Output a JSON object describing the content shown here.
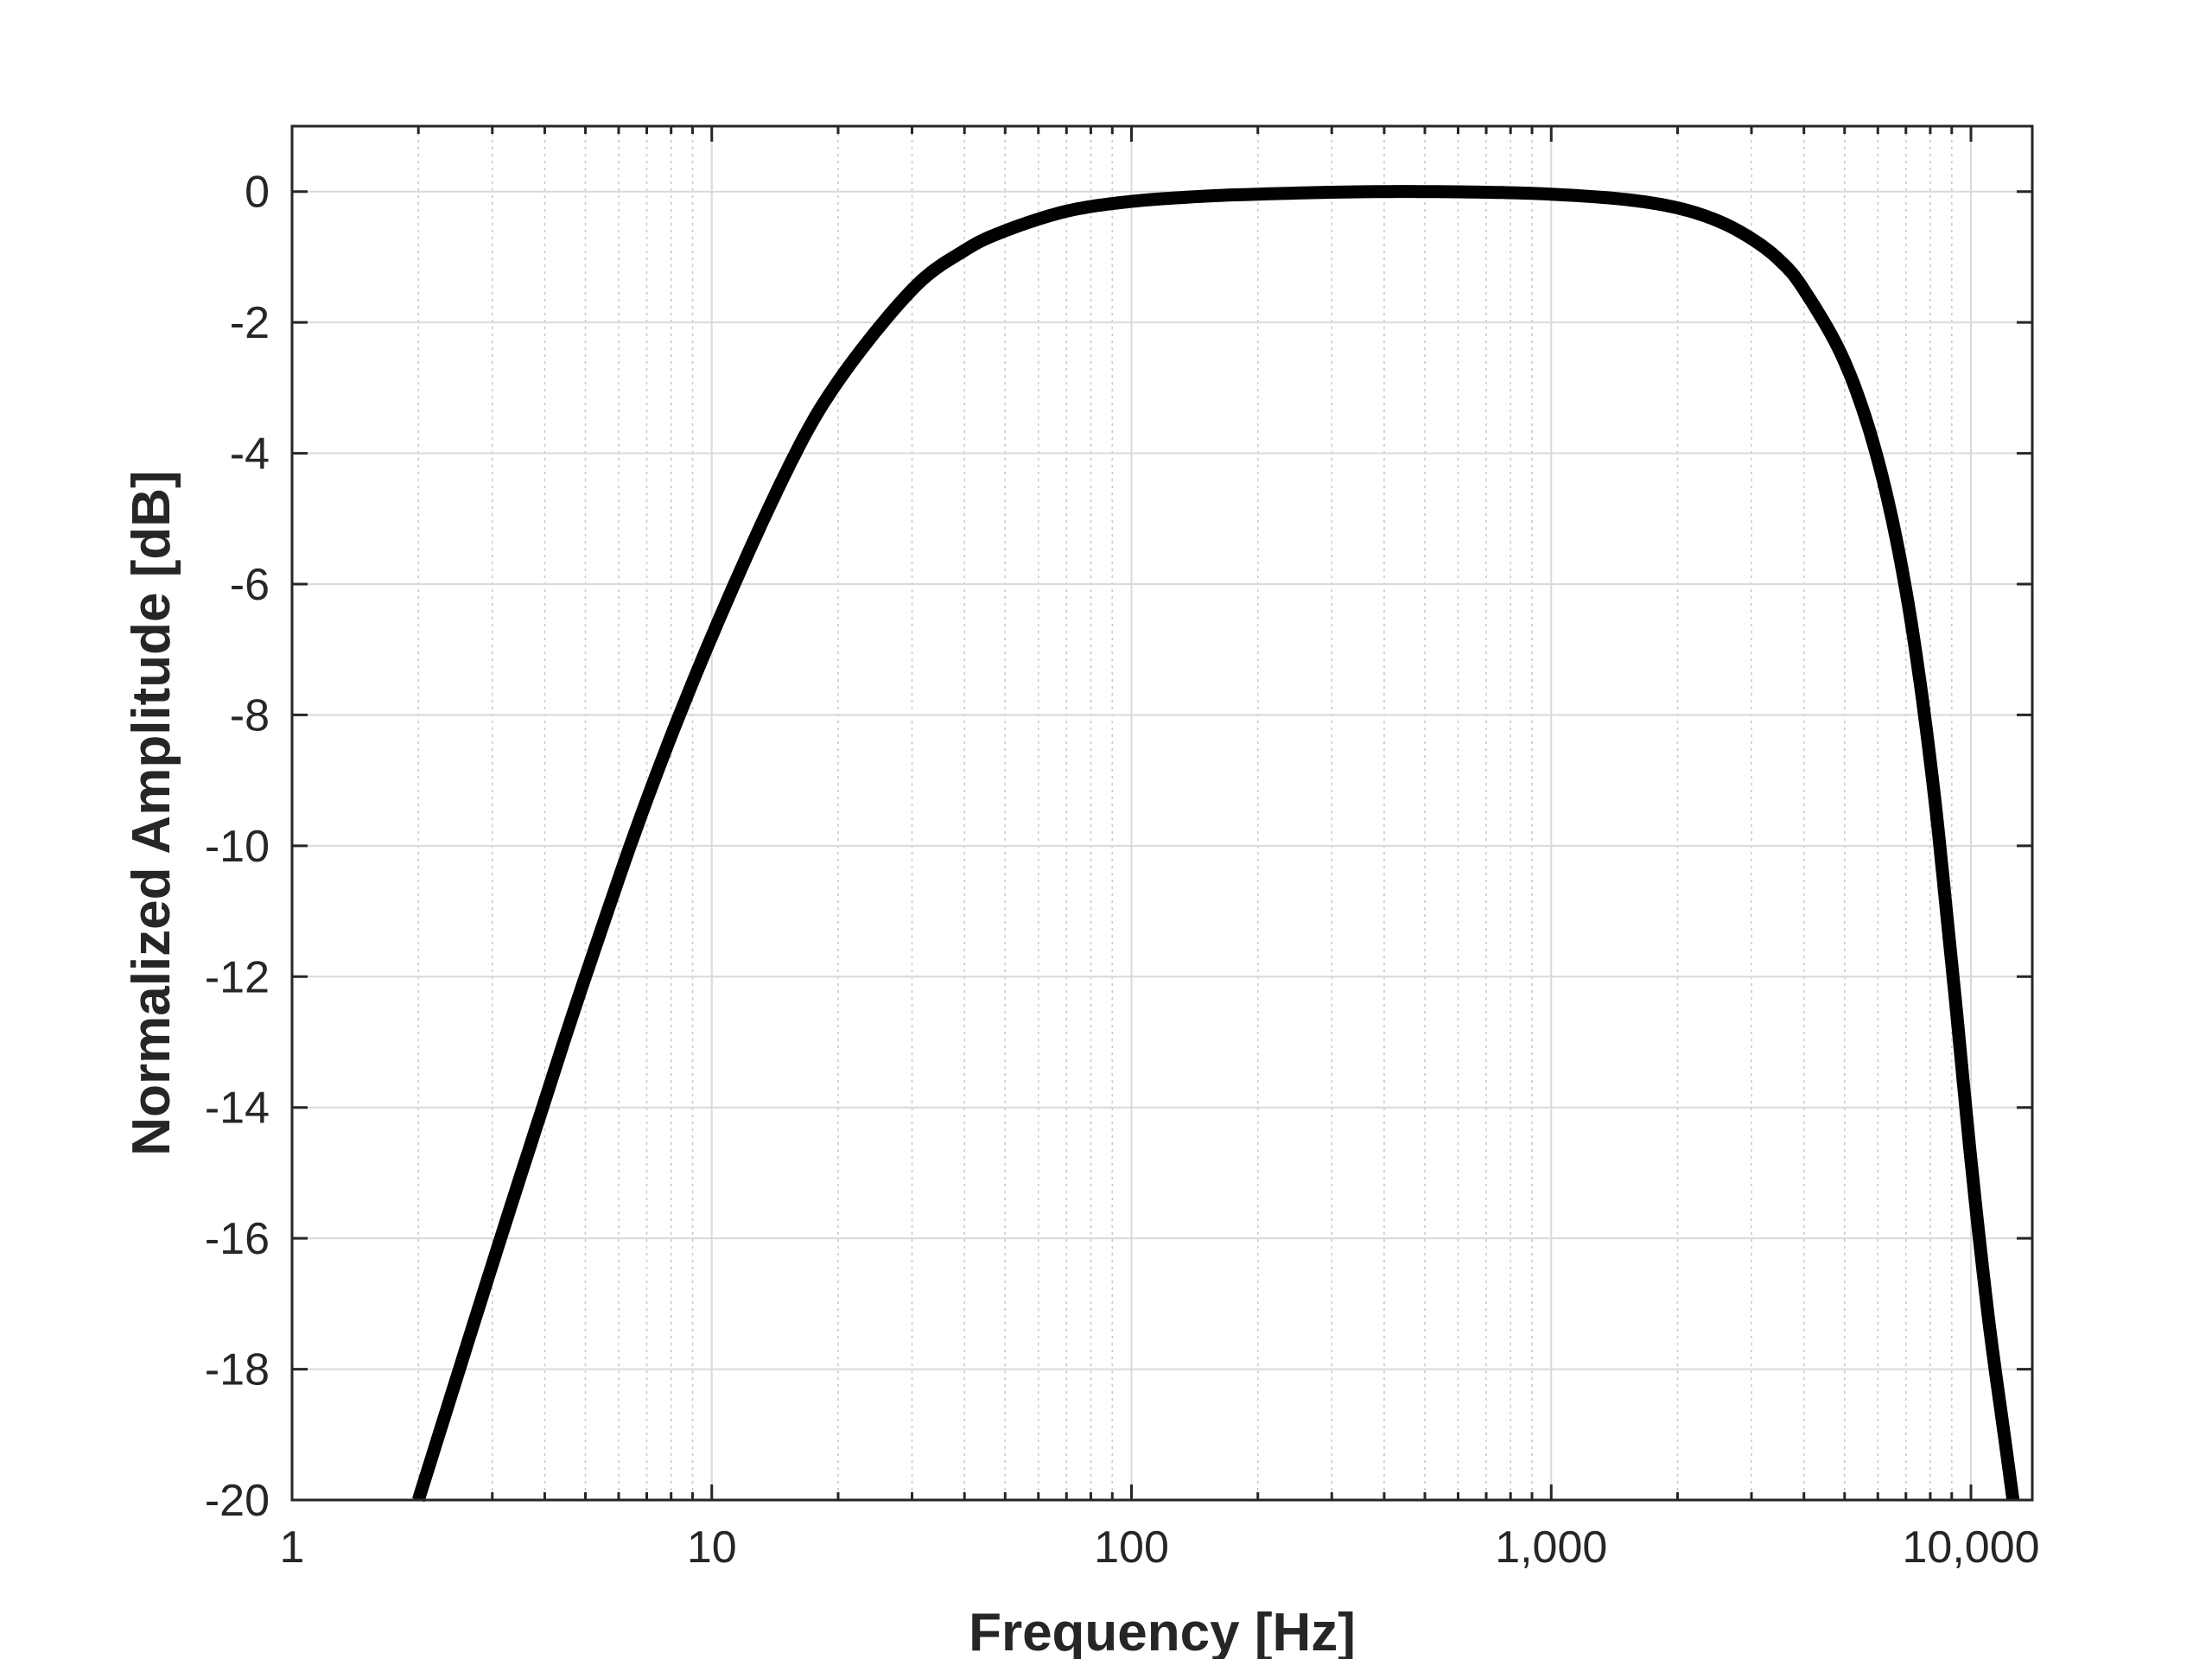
{
  "chart_data": {
    "type": "line",
    "title": "",
    "xlabel": "Frequency [Hz]",
    "ylabel": "Normalized Amplitude [dB]",
    "x_scale": "log",
    "xlim": [
      1,
      14000
    ],
    "ylim": [
      -20,
      1
    ],
    "grid": true,
    "minor_grid": true,
    "legend": "none",
    "x_ticks": [
      {
        "value": 1,
        "label": "1"
      },
      {
        "value": 10,
        "label": "10"
      },
      {
        "value": 100,
        "label": "100"
      },
      {
        "value": 1000,
        "label": "1,000"
      },
      {
        "value": 10000,
        "label": "10,000"
      }
    ],
    "y_ticks": [
      {
        "value": 0,
        "label": "0"
      },
      {
        "value": -2,
        "label": "-2"
      },
      {
        "value": -4,
        "label": "-4"
      },
      {
        "value": -6,
        "label": "-6"
      },
      {
        "value": -8,
        "label": "-8"
      },
      {
        "value": -10,
        "label": "-10"
      },
      {
        "value": -12,
        "label": "-12"
      },
      {
        "value": -14,
        "label": "-14"
      },
      {
        "value": -16,
        "label": "-16"
      },
      {
        "value": -18,
        "label": "-18"
      },
      {
        "value": -20,
        "label": "-20"
      }
    ],
    "series": [
      {
        "color": "#000000",
        "x": [
          2.0,
          3,
          4,
          5,
          7,
          10,
          15,
          20,
          30,
          40,
          50,
          70,
          100,
          150,
          200,
          300,
          400,
          500,
          700,
          1000,
          1500,
          2000,
          2500,
          3000,
          3500,
          4000,
          5000,
          6000,
          7000,
          8000,
          9000,
          10000,
          11000,
          12000,
          12600
        ],
        "values": [
          -20.0,
          -16.4,
          -13.9,
          -12.0,
          -9.3,
          -6.8,
          -4.3,
          -2.9,
          -1.5,
          -0.9,
          -0.6,
          -0.3,
          -0.15,
          -0.07,
          -0.04,
          -0.01,
          0.0,
          0.0,
          -0.01,
          -0.04,
          -0.12,
          -0.25,
          -0.45,
          -0.72,
          -1.05,
          -1.5,
          -2.6,
          -4.1,
          -6.1,
          -8.7,
          -11.8,
          -14.8,
          -17.2,
          -19.0,
          -20.0
        ]
      }
    ]
  }
}
